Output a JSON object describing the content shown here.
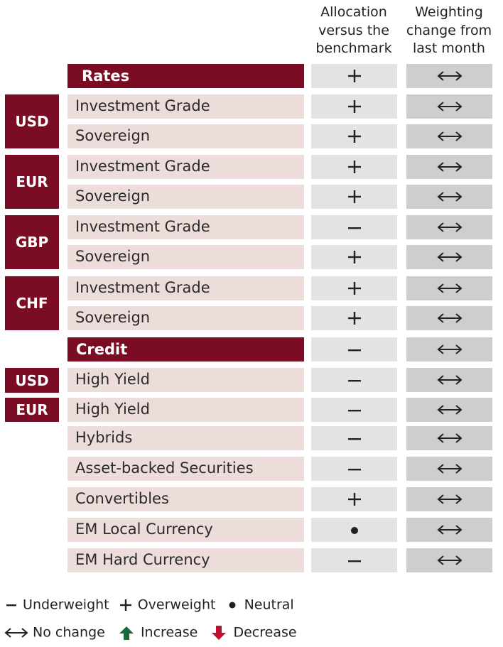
{
  "header": {
    "allocation_lines": [
      "Allocation",
      "versus the",
      "benchmark"
    ],
    "change_lines": [
      "Weighting",
      "change from",
      "last month"
    ]
  },
  "sections": [
    {
      "label": "Rates",
      "allocation": "+",
      "change": "no-change"
    },
    {
      "label": "Credit",
      "allocation": "−",
      "change": "no-change"
    }
  ],
  "currency_groups": [
    "USD",
    "EUR",
    "GBP",
    "CHF",
    "USD",
    "EUR"
  ],
  "rows": [
    {
      "label": "Investment Grade",
      "allocation": "+",
      "change": "no-change"
    },
    {
      "label": "Sovereign",
      "allocation": "+",
      "change": "no-change"
    },
    {
      "label": "Investment Grade",
      "allocation": "+",
      "change": "no-change"
    },
    {
      "label": "Sovereign",
      "allocation": "+",
      "change": "no-change"
    },
    {
      "label": "Investment Grade",
      "allocation": "−",
      "change": "no-change"
    },
    {
      "label": "Sovereign",
      "allocation": "+",
      "change": "no-change"
    },
    {
      "label": "Investment Grade",
      "allocation": "+",
      "change": "no-change"
    },
    {
      "label": "Sovereign",
      "allocation": "+",
      "change": "no-change"
    },
    {
      "label": "High Yield",
      "allocation": "−",
      "change": "no-change"
    },
    {
      "label": "High Yield",
      "allocation": "−",
      "change": "no-change"
    },
    {
      "label": "Hybrids",
      "allocation": "−",
      "change": "no-change"
    },
    {
      "label": "Asset-backed Securities",
      "allocation": "−",
      "change": "no-change"
    },
    {
      "label": "Convertibles",
      "allocation": "+",
      "change": "no-change"
    },
    {
      "label": "EM Local Currency",
      "allocation": "●",
      "change": "no-change"
    },
    {
      "label": "EM Hard Currency",
      "allocation": "−",
      "change": "no-change"
    }
  ],
  "legend": {
    "underweight": "Underweight",
    "overweight": "Overweight",
    "neutral": "Neutral",
    "no_change": "No change",
    "increase": "Increase",
    "decrease": "Decrease"
  },
  "colors": {
    "section_bg": "#7a0d24",
    "label_bg": "#ecdcda",
    "allocation_bg": "#e3e3e3",
    "change_bg": "#cecece",
    "increase": "#1a6b3c",
    "decrease": "#c0102e"
  }
}
